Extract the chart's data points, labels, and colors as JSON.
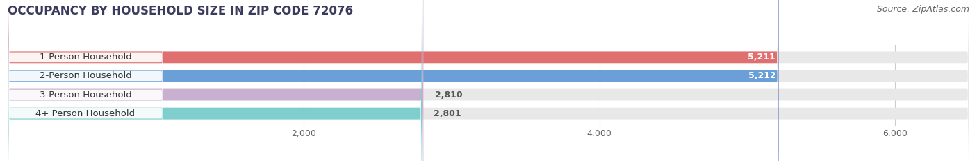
{
  "title": "OCCUPANCY BY HOUSEHOLD SIZE IN ZIP CODE 72076",
  "source": "Source: ZipAtlas.com",
  "categories": [
    "1-Person Household",
    "2-Person Household",
    "3-Person Household",
    "4+ Person Household"
  ],
  "values": [
    5211,
    5212,
    2810,
    2801
  ],
  "bar_colors": [
    "#E07070",
    "#6A9FD8",
    "#C9B0D0",
    "#7ECECE"
  ],
  "label_colors": [
    "white",
    "white",
    "#666666",
    "#666666"
  ],
  "xlim": [
    0,
    6500
  ],
  "xticks": [
    2000,
    4000,
    6000
  ],
  "xtick_labels": [
    "2,000",
    "4,000",
    "6,000"
  ],
  "background_color": "#ffffff",
  "bar_background_color": "#e8e8e8",
  "title_fontsize": 12,
  "source_fontsize": 9,
  "bar_height": 0.62,
  "bar_label_fontsize": 9,
  "category_label_fontsize": 9.5
}
